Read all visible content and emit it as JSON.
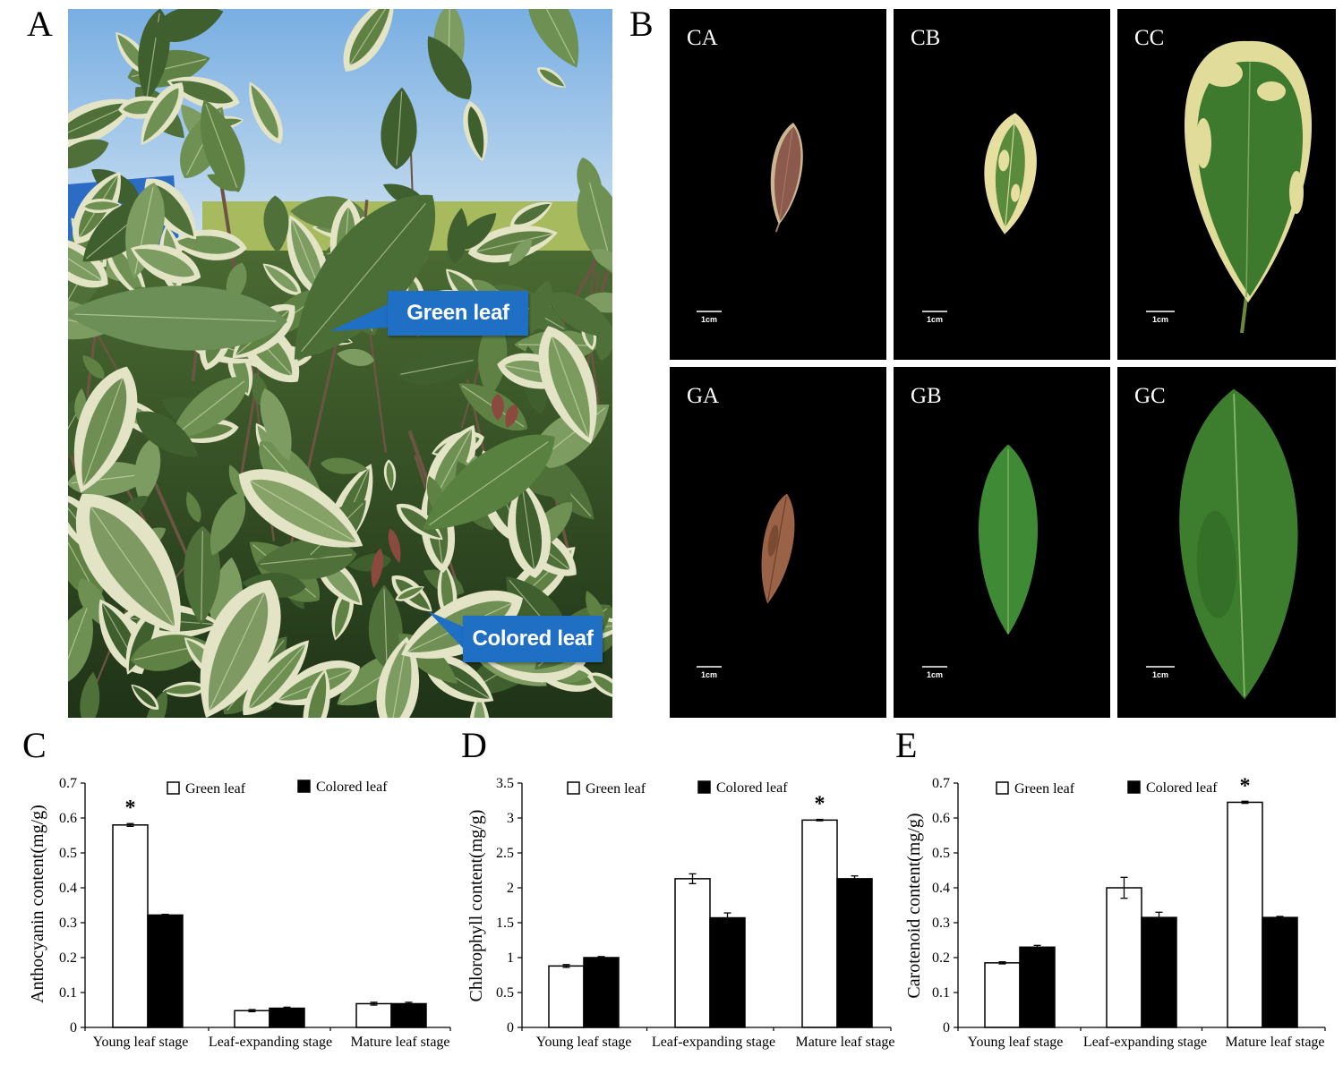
{
  "panels": {
    "a": {
      "label": "A",
      "callouts": [
        {
          "text": "Green leaf"
        },
        {
          "text": "Colored leaf"
        }
      ]
    },
    "b": {
      "label": "B",
      "samples": [
        {
          "label": "CA",
          "scale_bar": "1cm"
        },
        {
          "label": "CB",
          "scale_bar": "1cm"
        },
        {
          "label": "CC",
          "scale_bar": "1cm"
        },
        {
          "label": "GA",
          "scale_bar": "1cm"
        },
        {
          "label": "GB",
          "scale_bar": "1cm"
        },
        {
          "label": "GC",
          "scale_bar": "1cm"
        }
      ]
    },
    "c": {
      "label": "C"
    },
    "d": {
      "label": "D"
    },
    "e": {
      "label": "E"
    }
  },
  "colors": {
    "callout": "#1f6fc5",
    "callout_text": "#ffffff",
    "sample_background": "#000000",
    "green_leaf_bar": "#ffffff",
    "colored_leaf_bar": "#000000"
  },
  "chart_data": [
    {
      "type": "bar",
      "xlabel": "",
      "ylabel": "Anthocyanin content(mg/g)",
      "categories": [
        "Young leaf stage",
        "Leaf-expanding stage",
        "Mature leaf stage"
      ],
      "series": [
        {
          "name": "Green leaf",
          "color": "#ffffff",
          "values": [
            0.58,
            0.048,
            0.068
          ],
          "errors": [
            0.004,
            0.003,
            0.004
          ]
        },
        {
          "name": "Colored leaf",
          "color": "#000000",
          "values": [
            0.322,
            0.055,
            0.068
          ],
          "errors": [
            0.002,
            0.003,
            0.004
          ]
        }
      ],
      "ylim": [
        0,
        0.7
      ],
      "yticks": [
        0,
        0.1,
        0.2,
        0.3,
        0.4,
        0.5,
        0.6,
        0.7
      ],
      "grid": false,
      "legend": "top",
      "annotations": [
        {
          "text": "*",
          "category": "Young leaf stage",
          "series": "Green leaf"
        }
      ]
    },
    {
      "type": "bar",
      "xlabel": "",
      "ylabel": "Chlorophyll content(mg/g)",
      "categories": [
        "Young leaf stage",
        "Leaf-expanding stage",
        "Mature leaf stage"
      ],
      "series": [
        {
          "name": "Green leaf",
          "color": "#ffffff",
          "values": [
            0.88,
            2.13,
            2.97
          ],
          "errors": [
            0.02,
            0.07,
            0.01
          ]
        },
        {
          "name": "Colored leaf",
          "color": "#000000",
          "values": [
            1.0,
            1.57,
            2.13
          ],
          "errors": [
            0.015,
            0.07,
            0.04
          ]
        }
      ],
      "ylim": [
        0,
        3.5
      ],
      "yticks": [
        0,
        0.5,
        1,
        1.5,
        2,
        2.5,
        3,
        3.5
      ],
      "grid": false,
      "legend": "top",
      "annotations": [
        {
          "text": "*",
          "category": "Mature leaf stage",
          "series": "Green leaf"
        }
      ]
    },
    {
      "type": "bar",
      "xlabel": "",
      "ylabel": "Carotenoid content(mg/g)",
      "categories": [
        "Young leaf stage",
        "Leaf-expanding stage",
        "Mature leaf stage"
      ],
      "series": [
        {
          "name": "Green leaf",
          "color": "#ffffff",
          "values": [
            0.185,
            0.4,
            0.645
          ],
          "errors": [
            0.003,
            0.03,
            0.003
          ]
        },
        {
          "name": "Colored leaf",
          "color": "#000000",
          "values": [
            0.23,
            0.315,
            0.315
          ],
          "errors": [
            0.005,
            0.015,
            0.003
          ]
        }
      ],
      "ylim": [
        0,
        0.7
      ],
      "yticks": [
        0,
        0.1,
        0.2,
        0.3,
        0.4,
        0.5,
        0.6,
        0.7
      ],
      "grid": false,
      "legend": "top",
      "annotations": [
        {
          "text": "*",
          "category": "Mature leaf stage",
          "series": "Green leaf"
        }
      ]
    }
  ]
}
